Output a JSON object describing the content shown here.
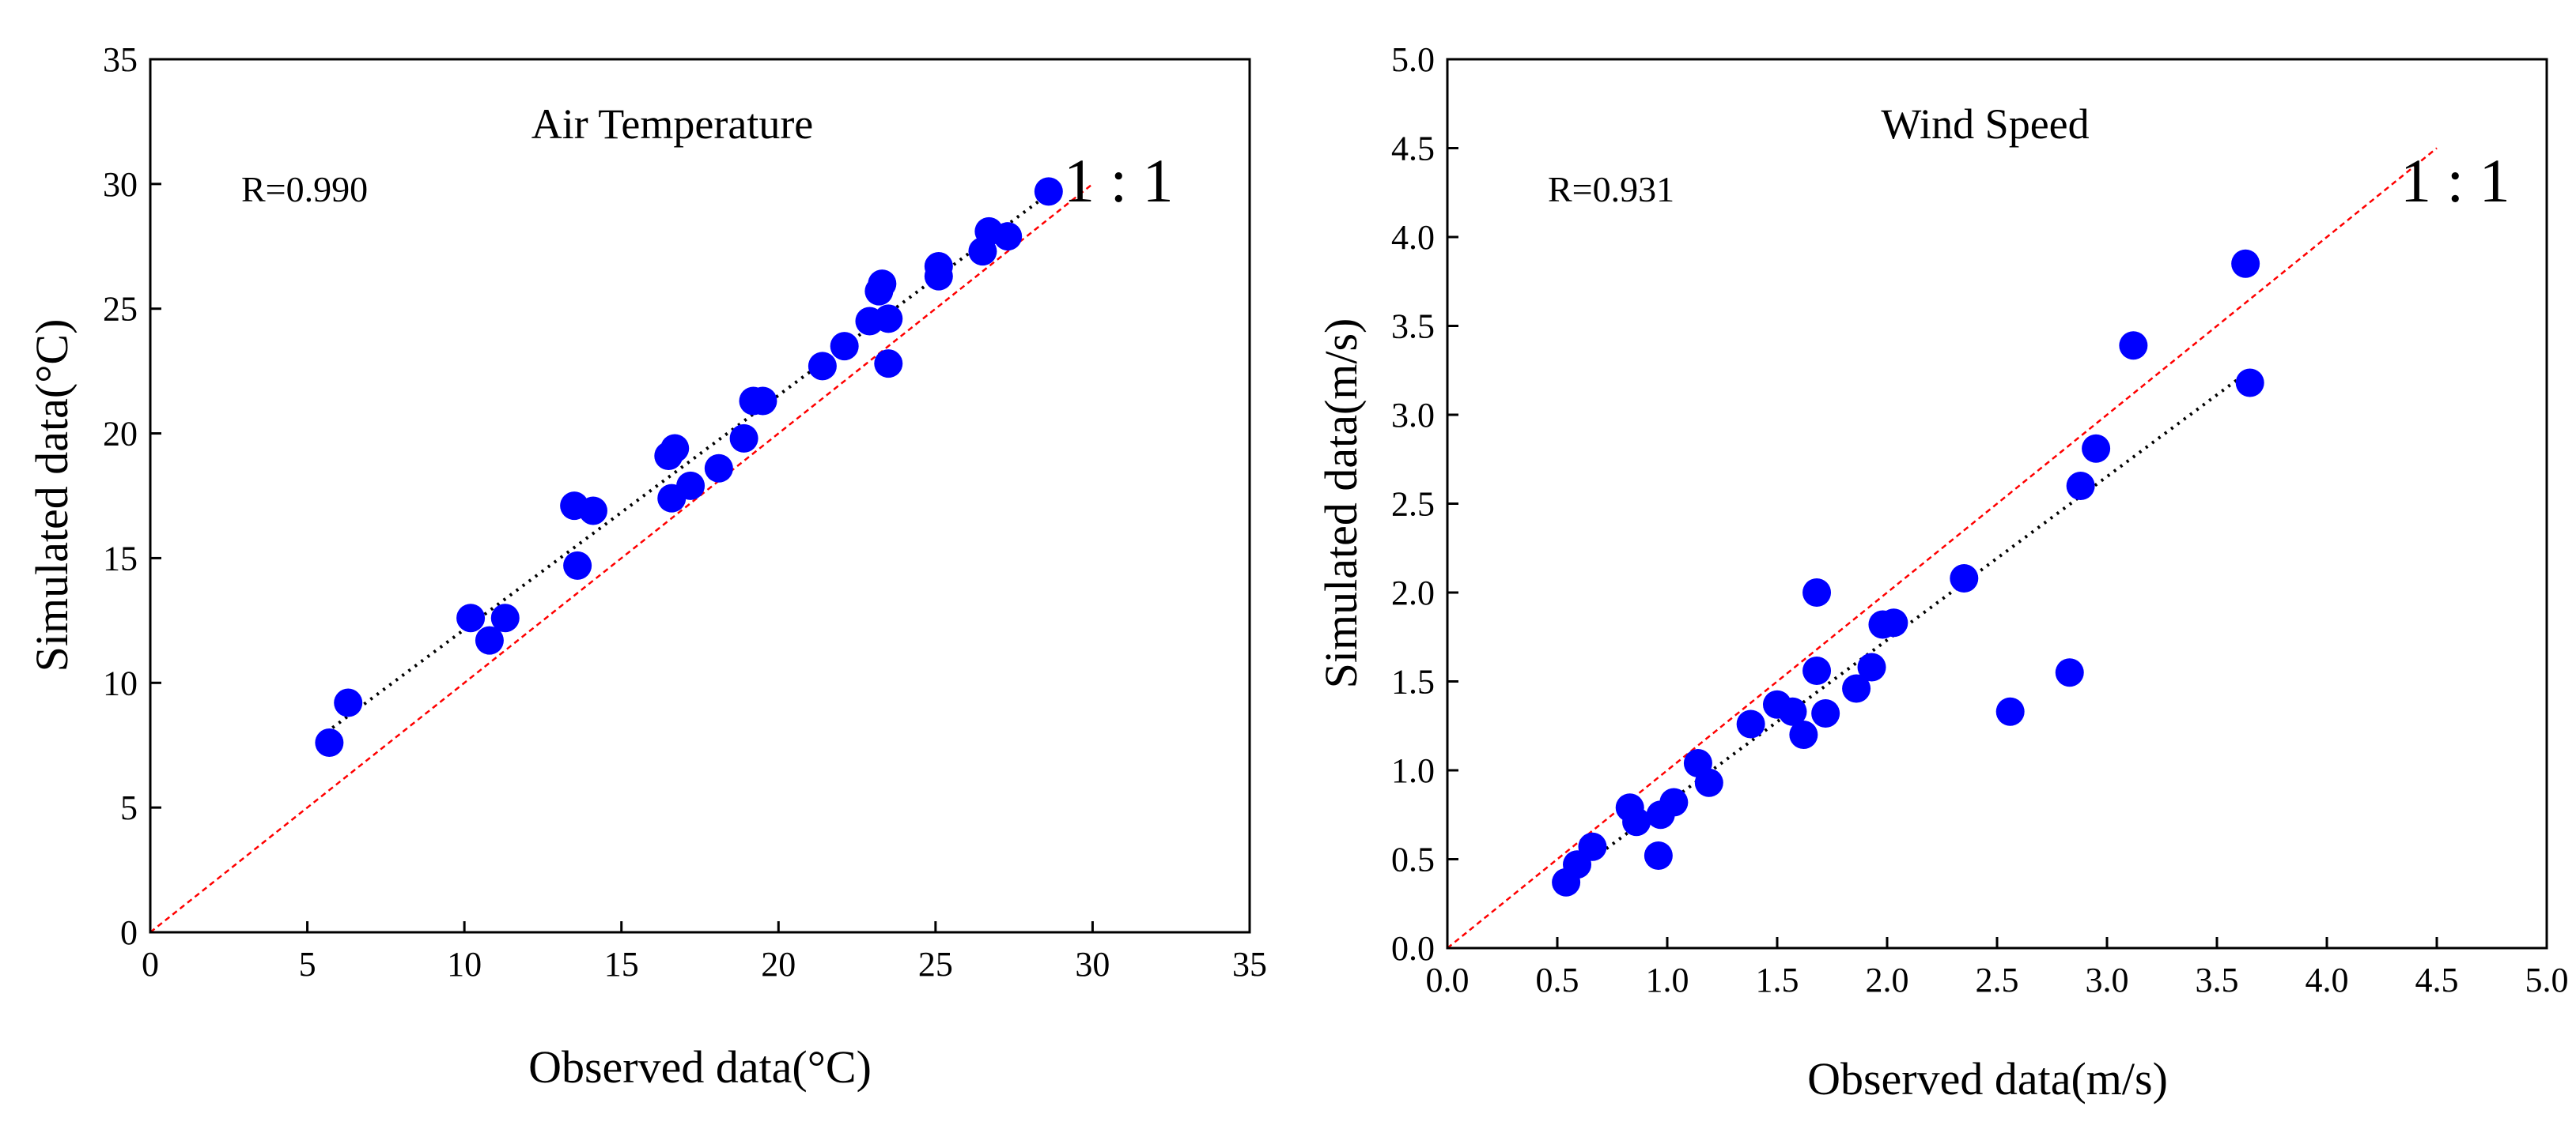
{
  "chart_data": [
    {
      "type": "scatter",
      "title": "Air Temperature",
      "xlabel": "Observed data(°C)",
      "ylabel": "Simulated data(°C)",
      "xlim": [
        0,
        35
      ],
      "ylim": [
        0,
        35
      ],
      "x_ticks": [
        0,
        5,
        10,
        15,
        20,
        25,
        30,
        35
      ],
      "y_ticks": [
        0,
        5,
        10,
        15,
        20,
        25,
        30,
        35
      ],
      "x_tick_labels": [
        "0",
        "5",
        "10",
        "15",
        "20",
        "25",
        "30",
        "35"
      ],
      "y_tick_labels": [
        "0",
        "5",
        "10",
        "15",
        "20",
        "25",
        "30",
        "35"
      ],
      "annotation": "R=0.990",
      "ratio_label": "1 : 1",
      "one_to_one_line": {
        "x": [
          0,
          30
        ],
        "y": [
          0,
          30
        ],
        "color": "#ff0000"
      },
      "fit_line": {
        "x": [
          5.8,
          28.6
        ],
        "y": [
          8.2,
          29.6
        ],
        "color": "#000000"
      },
      "marker_color": "#0000ff",
      "grid": false,
      "points": [
        {
          "x": 5.7,
          "y": 7.6
        },
        {
          "x": 6.3,
          "y": 9.2
        },
        {
          "x": 10.2,
          "y": 12.6
        },
        {
          "x": 10.8,
          "y": 11.7
        },
        {
          "x": 11.3,
          "y": 12.6
        },
        {
          "x": 13.5,
          "y": 17.1
        },
        {
          "x": 13.6,
          "y": 14.7
        },
        {
          "x": 14.1,
          "y": 16.9
        },
        {
          "x": 16.5,
          "y": 19.1
        },
        {
          "x": 16.7,
          "y": 19.4
        },
        {
          "x": 16.6,
          "y": 17.4
        },
        {
          "x": 17.2,
          "y": 17.9
        },
        {
          "x": 18.1,
          "y": 18.6
        },
        {
          "x": 18.9,
          "y": 19.8
        },
        {
          "x": 19.2,
          "y": 21.3
        },
        {
          "x": 19.5,
          "y": 21.3
        },
        {
          "x": 21.4,
          "y": 22.7
        },
        {
          "x": 22.1,
          "y": 23.5
        },
        {
          "x": 22.9,
          "y": 24.5
        },
        {
          "x": 23.2,
          "y": 25.7
        },
        {
          "x": 23.3,
          "y": 26.0
        },
        {
          "x": 23.5,
          "y": 24.6
        },
        {
          "x": 23.5,
          "y": 22.8
        },
        {
          "x": 25.1,
          "y": 26.3
        },
        {
          "x": 25.1,
          "y": 26.7
        },
        {
          "x": 26.5,
          "y": 27.3
        },
        {
          "x": 26.7,
          "y": 28.1
        },
        {
          "x": 27.3,
          "y": 27.9
        },
        {
          "x": 28.6,
          "y": 29.7
        }
      ]
    },
    {
      "type": "scatter",
      "title": "Wind Speed",
      "xlabel": "Observed data(m/s)",
      "ylabel": "Simulated data(m/s)",
      "xlim": [
        0,
        5
      ],
      "ylim": [
        0,
        5
      ],
      "x_ticks": [
        0,
        0.5,
        1,
        1.5,
        2,
        2.5,
        3,
        3.5,
        4,
        4.5,
        5
      ],
      "y_ticks": [
        0,
        0.5,
        1,
        1.5,
        2,
        2.5,
        3,
        3.5,
        4,
        4.5,
        5
      ],
      "x_tick_labels": [
        "0.0",
        "0.5",
        "1.0",
        "1.5",
        "2.0",
        "2.5",
        "3.0",
        "3.5",
        "4.0",
        "4.5",
        "5.0"
      ],
      "y_tick_labels": [
        "0.0",
        "0.5",
        "1.0",
        "1.5",
        "2.0",
        "2.5",
        "3.0",
        "3.5",
        "4.0",
        "4.5",
        "5.0"
      ],
      "annotation": "R=0.931",
      "ratio_label": "1 : 1",
      "one_to_one_line": {
        "x": [
          0,
          4.5
        ],
        "y": [
          0,
          4.5
        ],
        "color": "#ff0000"
      },
      "fit_line": {
        "x": [
          0.55,
          3.65
        ],
        "y": [
          0.4,
          3.25
        ],
        "color": "#000000"
      },
      "marker_color": "#0000ff",
      "grid": false,
      "points": [
        {
          "x": 0.54,
          "y": 0.37
        },
        {
          "x": 0.59,
          "y": 0.47
        },
        {
          "x": 0.66,
          "y": 0.57
        },
        {
          "x": 0.83,
          "y": 0.79
        },
        {
          "x": 0.86,
          "y": 0.71
        },
        {
          "x": 0.96,
          "y": 0.52
        },
        {
          "x": 0.97,
          "y": 0.75
        },
        {
          "x": 1.03,
          "y": 0.82
        },
        {
          "x": 1.14,
          "y": 1.04
        },
        {
          "x": 1.19,
          "y": 0.93
        },
        {
          "x": 1.38,
          "y": 1.26
        },
        {
          "x": 1.5,
          "y": 1.37
        },
        {
          "x": 1.57,
          "y": 1.33
        },
        {
          "x": 1.62,
          "y": 1.2
        },
        {
          "x": 1.68,
          "y": 2.0
        },
        {
          "x": 1.68,
          "y": 1.56
        },
        {
          "x": 1.72,
          "y": 1.32
        },
        {
          "x": 1.86,
          "y": 1.46
        },
        {
          "x": 1.93,
          "y": 1.58
        },
        {
          "x": 1.98,
          "y": 1.82
        },
        {
          "x": 2.03,
          "y": 1.83
        },
        {
          "x": 2.35,
          "y": 2.08
        },
        {
          "x": 2.56,
          "y": 1.33
        },
        {
          "x": 2.83,
          "y": 1.55
        },
        {
          "x": 2.88,
          "y": 2.6
        },
        {
          "x": 2.95,
          "y": 2.81
        },
        {
          "x": 3.12,
          "y": 3.39
        },
        {
          "x": 3.63,
          "y": 3.85
        },
        {
          "x": 3.65,
          "y": 3.18
        }
      ]
    }
  ]
}
